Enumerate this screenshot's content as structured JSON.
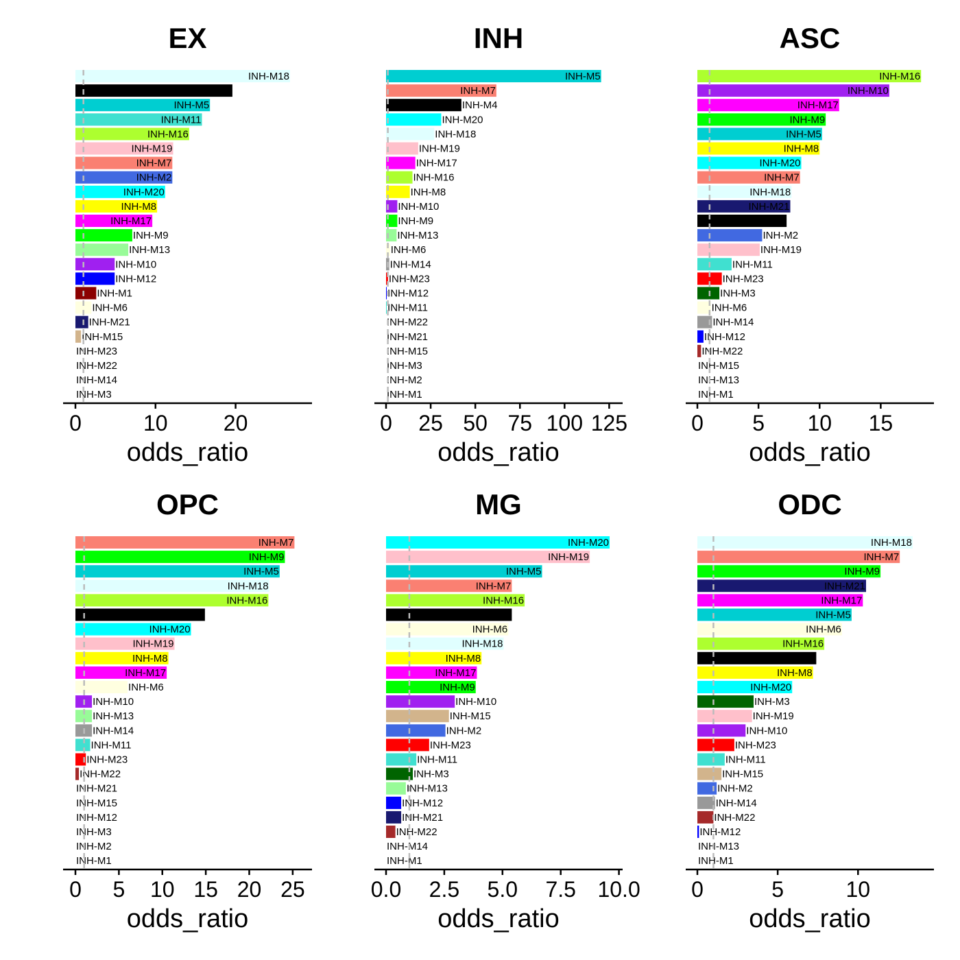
{
  "chart_data": [
    {
      "type": "bar",
      "orientation": "horizontal",
      "title": "EX",
      "xlabel": "odds_ratio",
      "ylabel": "",
      "xlim": [
        0,
        28
      ],
      "xticks": [
        0,
        10,
        20
      ],
      "xtick_labels": [
        "0",
        "10",
        "20"
      ],
      "reference_line": 1,
      "bars": [
        {
          "label": "INH-M18",
          "value": 26.8,
          "color": "#E0FFFF"
        },
        {
          "label": "",
          "value": 19.6,
          "color": "#000000"
        },
        {
          "label": "INH-M5",
          "value": 16.8,
          "color": "#00CED1"
        },
        {
          "label": "INH-M11",
          "value": 15.8,
          "color": "#40E0D0"
        },
        {
          "label": "INH-M16",
          "value": 14.2,
          "color": "#ADFF2F"
        },
        {
          "label": "INH-M19",
          "value": 12.2,
          "color": "#FFC0CB"
        },
        {
          "label": "INH-M7",
          "value": 12.1,
          "color": "#FA8072"
        },
        {
          "label": "INH-M2",
          "value": 12.1,
          "color": "#4169E1"
        },
        {
          "label": "INH-M20",
          "value": 11.2,
          "color": "#00FFFF"
        },
        {
          "label": "INH-M8",
          "value": 10.2,
          "color": "#FFFF00"
        },
        {
          "label": "INH-M17",
          "value": 9.6,
          "color": "#FF00FF"
        },
        {
          "label": "INH-M9",
          "value": 7.1,
          "color": "#00FF00"
        },
        {
          "label": "INH-M13",
          "value": 6.6,
          "color": "#98FB98"
        },
        {
          "label": "INH-M10",
          "value": 4.9,
          "color": "#A020F0"
        },
        {
          "label": "INH-M12",
          "value": 4.9,
          "color": "#0000FF"
        },
        {
          "label": "INH-M1",
          "value": 2.6,
          "color": "#8B0000"
        },
        {
          "label": "INH-M6",
          "value": 2.0,
          "color": "#FFFFE0"
        },
        {
          "label": "INH-M21",
          "value": 1.6,
          "color": "#191970"
        },
        {
          "label": "INH-M15",
          "value": 0.7,
          "color": "#D2B48C"
        },
        {
          "label": "INH-M23",
          "value": 0,
          "color": "#FF0000"
        },
        {
          "label": "INH-M22",
          "value": 0,
          "color": "#A52A2A"
        },
        {
          "label": "INH-M14",
          "value": 0,
          "color": "#999999"
        },
        {
          "label": "INH-M3",
          "value": 0,
          "color": "#006400"
        }
      ]
    },
    {
      "type": "bar",
      "orientation": "horizontal",
      "title": "INH",
      "xlabel": "odds_ratio",
      "ylabel": "",
      "xlim": [
        0,
        126
      ],
      "xticks": [
        0,
        25,
        50,
        75,
        100,
        125
      ],
      "xtick_labels": [
        "0",
        "25",
        "50",
        "75",
        "100",
        "125"
      ],
      "reference_line": 1,
      "bars": [
        {
          "label": "INH-M5",
          "value": 120.5,
          "color": "#00CED1"
        },
        {
          "label": "INH-M7",
          "value": 61.8,
          "color": "#FA8072"
        },
        {
          "label": "INH-M4",
          "value": 42.2,
          "color": "#000000"
        },
        {
          "label": "INH-M20",
          "value": 30.9,
          "color": "#00FFFF"
        },
        {
          "label": "INH-M18",
          "value": 27.0,
          "color": "#E0FFFF"
        },
        {
          "label": "INH-M19",
          "value": 18.0,
          "color": "#FFC0CB"
        },
        {
          "label": "INH-M17",
          "value": 16.4,
          "color": "#FF00FF"
        },
        {
          "label": "INH-M16",
          "value": 14.8,
          "color": "#ADFF2F"
        },
        {
          "label": "INH-M8",
          "value": 13.3,
          "color": "#FFFF00"
        },
        {
          "label": "INH-M10",
          "value": 6.3,
          "color": "#A020F0"
        },
        {
          "label": "INH-M9",
          "value": 6.3,
          "color": "#00FF00"
        },
        {
          "label": "INH-M13",
          "value": 5.9,
          "color": "#98FB98"
        },
        {
          "label": "INH-M6",
          "value": 2.2,
          "color": "#FFFFE0"
        },
        {
          "label": "INH-M14",
          "value": 1.8,
          "color": "#999999"
        },
        {
          "label": "INH-M23",
          "value": 1.1,
          "color": "#FF0000"
        },
        {
          "label": "INH-M12",
          "value": 0.4,
          "color": "#0000FF"
        },
        {
          "label": "INH-M11",
          "value": 0.4,
          "color": "#40E0D0"
        },
        {
          "label": "INH-M22",
          "value": 0,
          "color": "#A52A2A"
        },
        {
          "label": "INH-M21",
          "value": 0,
          "color": "#191970"
        },
        {
          "label": "INH-M15",
          "value": 0,
          "color": "#D2B48C"
        },
        {
          "label": "INH-M3",
          "value": 0,
          "color": "#006400"
        },
        {
          "label": "INH-M2",
          "value": 0,
          "color": "#4169E1"
        },
        {
          "label": "INH-M1",
          "value": 0,
          "color": "#8B0000"
        }
      ]
    },
    {
      "type": "bar",
      "orientation": "horizontal",
      "title": "ASC",
      "xlabel": "odds_ratio",
      "ylabel": "",
      "xlim": [
        0,
        18.4
      ],
      "xticks": [
        0,
        5,
        10,
        15
      ],
      "xtick_labels": [
        "0",
        "5",
        "10",
        "15"
      ],
      "reference_line": 1,
      "bars": [
        {
          "label": "INH-M16",
          "value": 18.3,
          "color": "#ADFF2F"
        },
        {
          "label": "INH-M10",
          "value": 15.7,
          "color": "#A020F0"
        },
        {
          "label": "INH-M17",
          "value": 11.6,
          "color": "#FF00FF"
        },
        {
          "label": "INH-M9",
          "value": 10.5,
          "color": "#00FF00"
        },
        {
          "label": "INH-M5",
          "value": 10.2,
          "color": "#00CED1"
        },
        {
          "label": "INH-M8",
          "value": 10.0,
          "color": "#FFFF00"
        },
        {
          "label": "INH-M20",
          "value": 8.5,
          "color": "#00FFFF"
        },
        {
          "label": "INH-M7",
          "value": 8.4,
          "color": "#FA8072"
        },
        {
          "label": "INH-M18",
          "value": 7.7,
          "color": "#E0FFFF"
        },
        {
          "label": "INH-M21",
          "value": 7.6,
          "color": "#191970"
        },
        {
          "label": "INH-M4",
          "value": 7.3,
          "color": "#000000"
        },
        {
          "label": "INH-M2",
          "value": 5.3,
          "color": "#4169E1"
        },
        {
          "label": "INH-M19",
          "value": 5.1,
          "color": "#FFC0CB"
        },
        {
          "label": "INH-M11",
          "value": 2.8,
          "color": "#40E0D0"
        },
        {
          "label": "INH-M23",
          "value": 2.0,
          "color": "#FF0000"
        },
        {
          "label": "INH-M3",
          "value": 1.8,
          "color": "#006400"
        },
        {
          "label": "INH-M6",
          "value": 1.1,
          "color": "#FFFFE0"
        },
        {
          "label": "INH-M14",
          "value": 1.2,
          "color": "#999999"
        },
        {
          "label": "INH-M12",
          "value": 0.5,
          "color": "#0000FF"
        },
        {
          "label": "INH-M22",
          "value": 0.3,
          "color": "#A52A2A"
        },
        {
          "label": "INH-M15",
          "value": 0,
          "color": "#D2B48C"
        },
        {
          "label": "INH-M13",
          "value": 0,
          "color": "#98FB98"
        },
        {
          "label": "INH-M1",
          "value": 0,
          "color": "#8B0000"
        }
      ]
    },
    {
      "type": "bar",
      "orientation": "horizontal",
      "title": "OPC",
      "xlabel": "odds_ratio",
      "ylabel": "",
      "xlim": [
        0,
        25.8
      ],
      "xticks": [
        0,
        5,
        10,
        15,
        20,
        25
      ],
      "xtick_labels": [
        "0",
        "5",
        "10",
        "15",
        "20",
        "25"
      ],
      "reference_line": 1,
      "bars": [
        {
          "label": "INH-M7",
          "value": 25.2,
          "color": "#FA8072"
        },
        {
          "label": "INH-M9",
          "value": 24.1,
          "color": "#00FF00"
        },
        {
          "label": "INH-M5",
          "value": 23.5,
          "color": "#00CED1"
        },
        {
          "label": "INH-M18",
          "value": 22.3,
          "color": "#E0FFFF"
        },
        {
          "label": "INH-M16",
          "value": 22.2,
          "color": "#ADFF2F"
        },
        {
          "label": "",
          "value": 14.9,
          "color": "#000000"
        },
        {
          "label": "INH-M20",
          "value": 13.3,
          "color": "#00FFFF"
        },
        {
          "label": "INH-M19",
          "value": 11.4,
          "color": "#FFC0CB"
        },
        {
          "label": "INH-M8",
          "value": 10.7,
          "color": "#FFFF00"
        },
        {
          "label": "INH-M17",
          "value": 10.5,
          "color": "#FF00FF"
        },
        {
          "label": "INH-M6",
          "value": 6.0,
          "color": "#FFFFE0"
        },
        {
          "label": "INH-M10",
          "value": 1.9,
          "color": "#A020F0"
        },
        {
          "label": "INH-M13",
          "value": 1.9,
          "color": "#98FB98"
        },
        {
          "label": "INH-M14",
          "value": 1.9,
          "color": "#999999"
        },
        {
          "label": "INH-M11",
          "value": 1.7,
          "color": "#40E0D0"
        },
        {
          "label": "INH-M23",
          "value": 1.2,
          "color": "#FF0000"
        },
        {
          "label": "INH-M22",
          "value": 0.4,
          "color": "#A52A2A"
        },
        {
          "label": "INH-M21",
          "value": 0,
          "color": "#191970"
        },
        {
          "label": "INH-M15",
          "value": 0,
          "color": "#D2B48C"
        },
        {
          "label": "INH-M12",
          "value": 0,
          "color": "#0000FF"
        },
        {
          "label": "INH-M3",
          "value": 0,
          "color": "#006400"
        },
        {
          "label": "INH-M2",
          "value": 0,
          "color": "#4169E1"
        },
        {
          "label": "INH-M1",
          "value": 0,
          "color": "#8B0000"
        }
      ]
    },
    {
      "type": "bar",
      "orientation": "horizontal",
      "title": "MG",
      "xlabel": "odds_ratio",
      "ylabel": "",
      "xlim": [
        0,
        10.1
      ],
      "xticks": [
        0,
        2.5,
        5,
        7.5,
        10
      ],
      "xtick_labels": [
        "0.0",
        "2.5",
        "5.0",
        "7.5",
        "10.0"
      ],
      "reference_line": 1,
      "bars": [
        {
          "label": "INH-M20",
          "value": 9.6,
          "color": "#00FFFF"
        },
        {
          "label": "INH-M19",
          "value": 8.75,
          "color": "#FFC0CB"
        },
        {
          "label": "INH-M5",
          "value": 6.7,
          "color": "#00CED1"
        },
        {
          "label": "INH-M7",
          "value": 5.4,
          "color": "#FA8072"
        },
        {
          "label": "INH-M16",
          "value": 5.95,
          "color": "#ADFF2F"
        },
        {
          "label": "",
          "value": 5.4,
          "color": "#000000"
        },
        {
          "label": "INH-M6",
          "value": 5.25,
          "color": "#FFFFE0"
        },
        {
          "label": "INH-M18",
          "value": 5.05,
          "color": "#E0FFFF"
        },
        {
          "label": "INH-M8",
          "value": 4.1,
          "color": "#FFFF00"
        },
        {
          "label": "INH-M17",
          "value": 3.9,
          "color": "#FF00FF"
        },
        {
          "label": "INH-M9",
          "value": 3.85,
          "color": "#00FF00"
        },
        {
          "label": "INH-M10",
          "value": 2.95,
          "color": "#A020F0"
        },
        {
          "label": "INH-M15",
          "value": 2.7,
          "color": "#D2B48C"
        },
        {
          "label": "INH-M2",
          "value": 2.55,
          "color": "#4169E1"
        },
        {
          "label": "INH-M23",
          "value": 1.85,
          "color": "#FF0000"
        },
        {
          "label": "INH-M11",
          "value": 1.3,
          "color": "#40E0D0"
        },
        {
          "label": "INH-M3",
          "value": 1.15,
          "color": "#006400"
        },
        {
          "label": "INH-M13",
          "value": 0.85,
          "color": "#98FB98"
        },
        {
          "label": "INH-M12",
          "value": 0.65,
          "color": "#0000FF"
        },
        {
          "label": "INH-M21",
          "value": 0.65,
          "color": "#191970"
        },
        {
          "label": "INH-M22",
          "value": 0.4,
          "color": "#A52A2A"
        },
        {
          "label": "INH-M14",
          "value": 0,
          "color": "#999999"
        },
        {
          "label": "INH-M1",
          "value": 0,
          "color": "#8B0000"
        }
      ]
    },
    {
      "type": "bar",
      "orientation": "horizontal",
      "title": "ODC",
      "xlabel": "odds_ratio",
      "ylabel": "",
      "xlim": [
        0,
        14.0
      ],
      "xticks": [
        0,
        5,
        10
      ],
      "xtick_labels": [
        "0",
        "5",
        "10"
      ],
      "reference_line": 1,
      "bars": [
        {
          "label": "INH-M18",
          "value": 13.4,
          "color": "#E0FFFF"
        },
        {
          "label": "INH-M7",
          "value": 12.6,
          "color": "#FA8072"
        },
        {
          "label": "INH-M9",
          "value": 11.4,
          "color": "#00FF00"
        },
        {
          "label": "INH-M21",
          "value": 10.5,
          "color": "#191970"
        },
        {
          "label": "INH-M17",
          "value": 10.3,
          "color": "#FF00FF"
        },
        {
          "label": "INH-M5",
          "value": 9.6,
          "color": "#00CED1"
        },
        {
          "label": "INH-M6",
          "value": 9.0,
          "color": "#FFFFE0"
        },
        {
          "label": "INH-M16",
          "value": 7.9,
          "color": "#ADFF2F"
        },
        {
          "label": "",
          "value": 7.4,
          "color": "#000000"
        },
        {
          "label": "INH-M8",
          "value": 7.2,
          "color": "#FFFF00"
        },
        {
          "label": "INH-M20",
          "value": 5.9,
          "color": "#00FFFF"
        },
        {
          "label": "INH-M3",
          "value": 3.5,
          "color": "#006400"
        },
        {
          "label": "INH-M19",
          "value": 3.4,
          "color": "#FFC0CB"
        },
        {
          "label": "INH-M10",
          "value": 3.0,
          "color": "#A020F0"
        },
        {
          "label": "INH-M23",
          "value": 2.3,
          "color": "#FF0000"
        },
        {
          "label": "INH-M11",
          "value": 1.7,
          "color": "#40E0D0"
        },
        {
          "label": "INH-M15",
          "value": 1.5,
          "color": "#D2B48C"
        },
        {
          "label": "INH-M2",
          "value": 1.2,
          "color": "#4169E1"
        },
        {
          "label": "INH-M14",
          "value": 1.1,
          "color": "#999999"
        },
        {
          "label": "INH-M22",
          "value": 1.0,
          "color": "#A52A2A"
        },
        {
          "label": "INH-M12",
          "value": 0.1,
          "color": "#0000FF"
        },
        {
          "label": "INH-M13",
          "value": 0,
          "color": "#98FB98"
        },
        {
          "label": "INH-M1",
          "value": 0,
          "color": "#8B0000"
        }
      ]
    }
  ]
}
